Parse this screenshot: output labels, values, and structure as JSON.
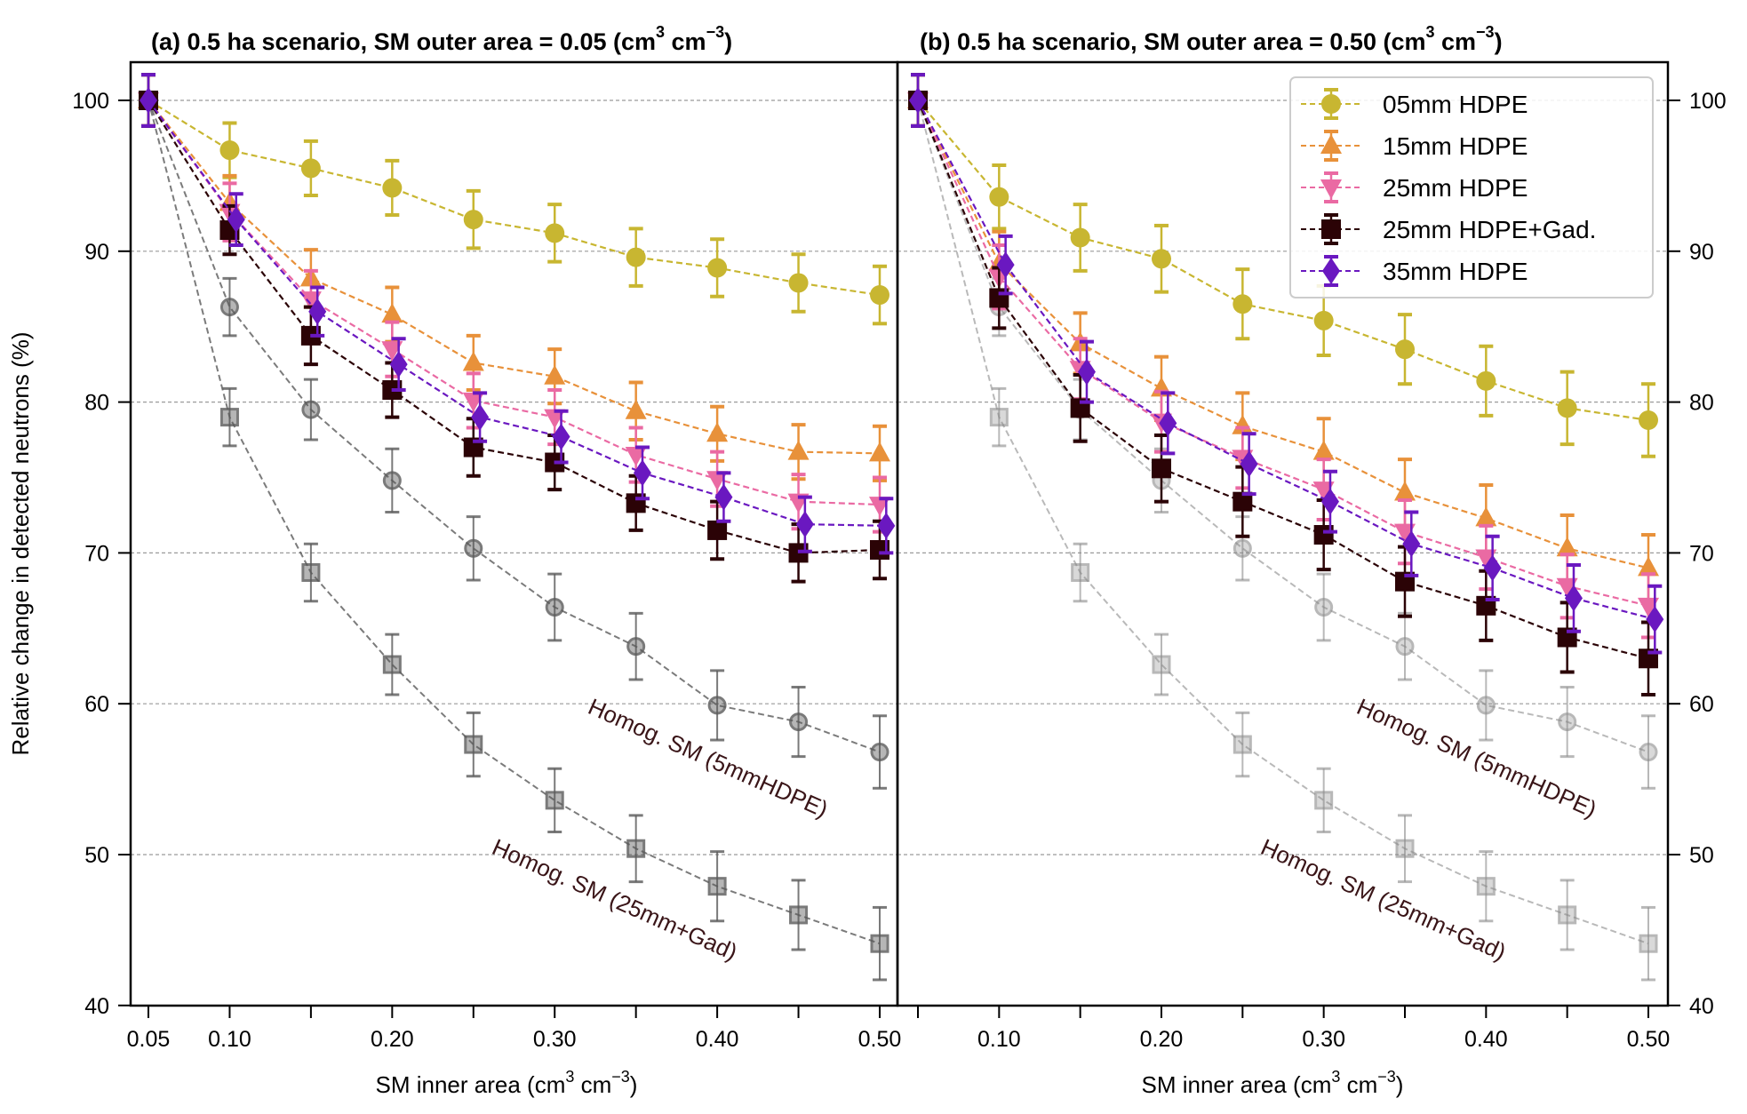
{
  "chart_data": [
    {
      "type": "line",
      "panel": "a",
      "title": "(a) 0.5 ha scenario, SM outer area = 0.05 (cm3 cm-3)",
      "title_main": "(a) 0.5 ha scenario, SM outer area = 0.05 (cm",
      "xlabel_main": "SM inner area (cm",
      "ylabel": "Relative change in detected neutrons (%)",
      "x": [
        0.05,
        0.1,
        0.15,
        0.2,
        0.25,
        0.3,
        0.35,
        0.4,
        0.45,
        0.5
      ],
      "xticks": [
        0.05,
        0.1,
        0.15,
        0.2,
        0.25,
        0.3,
        0.35,
        0.4,
        0.45,
        0.5
      ],
      "xtick_labels": [
        "0.05",
        "0.10",
        "",
        "0.20",
        "",
        "0.30",
        "",
        "0.40",
        "",
        "0.50"
      ],
      "xlim": [
        0.04,
        0.515
      ],
      "ylim": [
        40,
        102.5
      ],
      "yticks": [
        40,
        50,
        60,
        70,
        80,
        90,
        100
      ],
      "ytick_labels": [
        "40",
        "50",
        "60",
        "70",
        "80",
        "90",
        "100"
      ],
      "grid": "horizontal dashed",
      "series": [
        {
          "name": "05mm HDPE",
          "marker": "circle",
          "color": "#c8b631",
          "values": [
            100,
            96.7,
            95.5,
            94.2,
            92.1,
            91.2,
            89.6,
            88.9,
            87.9,
            87.1
          ],
          "err": [
            1.7,
            1.8,
            1.8,
            1.8,
            1.9,
            1.9,
            1.9,
            1.9,
            1.9,
            1.9
          ]
        },
        {
          "name": "15mm HDPE",
          "marker": "triangle-up",
          "color": "#e8913a",
          "values": [
            100,
            93.2,
            88.2,
            85.8,
            82.6,
            81.7,
            79.4,
            77.9,
            76.7,
            76.6
          ],
          "err": [
            1.7,
            1.8,
            1.9,
            1.8,
            1.8,
            1.8,
            1.9,
            1.8,
            1.8,
            1.8
          ]
        },
        {
          "name": "25mm HDPE",
          "marker": "triangle-down",
          "color": "#ea6aa3",
          "values": [
            100,
            92.6,
            86.8,
            83.5,
            80.1,
            79.0,
            76.5,
            74.9,
            73.4,
            73.2
          ],
          "err": [
            1.7,
            1.9,
            1.9,
            1.8,
            1.8,
            1.8,
            1.8,
            1.8,
            1.8,
            1.8
          ]
        },
        {
          "name": "25mm HDPE+Gad.",
          "marker": "square",
          "color": "#2b0306",
          "values": [
            100,
            91.4,
            84.4,
            80.8,
            77.0,
            76.0,
            73.3,
            71.5,
            70.0,
            70.2
          ],
          "err": [
            1.7,
            1.6,
            1.9,
            1.8,
            1.9,
            1.8,
            1.8,
            1.9,
            1.9,
            1.9
          ]
        },
        {
          "name": "35mm HDPE",
          "marker": "diamond",
          "color": "#6a18c0",
          "values": [
            100,
            92.1,
            86.0,
            82.5,
            79.0,
            77.7,
            75.3,
            73.7,
            71.9,
            71.8
          ],
          "err": [
            1.7,
            1.7,
            1.6,
            1.7,
            1.6,
            1.7,
            1.7,
            1.6,
            1.8,
            1.8
          ]
        },
        {
          "name": "Homog. SM (5mmHDPE)",
          "marker": "circle-open",
          "color": "#5a5a5a",
          "values": [
            100,
            86.3,
            79.5,
            74.8,
            70.3,
            66.4,
            63.8,
            59.9,
            58.8,
            56.8
          ],
          "err": [
            1.7,
            1.9,
            2.0,
            2.1,
            2.1,
            2.2,
            2.2,
            2.3,
            2.3,
            2.4
          ]
        },
        {
          "name": "Homog. SM (25mm+Gad)",
          "marker": "square-open",
          "color": "#5a5a5a",
          "values": [
            100,
            79.0,
            68.7,
            62.6,
            57.3,
            53.6,
            50.4,
            47.9,
            46.0,
            44.1
          ],
          "err": [
            1.7,
            1.9,
            1.9,
            2.0,
            2.1,
            2.1,
            2.2,
            2.3,
            2.3,
            2.4
          ]
        }
      ],
      "annotations": [
        "Homog. SM (5mmHDPE)",
        "Homog. SM (25mm+Gad)"
      ]
    },
    {
      "type": "line",
      "panel": "b",
      "title": "(b) 0.5 ha scenario, SM outer area = 0.50 (cm3 cm-3)",
      "title_main": "(b) 0.5 ha scenario, SM outer area = 0.50 (cm",
      "xlabel_main": "SM inner area (cm",
      "x": [
        0.05,
        0.1,
        0.15,
        0.2,
        0.25,
        0.3,
        0.35,
        0.4,
        0.45,
        0.5
      ],
      "xticks": [
        0.05,
        0.1,
        0.15,
        0.2,
        0.25,
        0.3,
        0.35,
        0.4,
        0.45,
        0.5
      ],
      "xtick_labels": [
        "",
        "0.10",
        "",
        "0.20",
        "",
        "0.30",
        "",
        "0.40",
        "",
        "0.50"
      ],
      "xlim": [
        0.04,
        0.515
      ],
      "ylim": [
        40,
        102.5
      ],
      "yticks": [
        40,
        50,
        60,
        70,
        80,
        90,
        100
      ],
      "ytick_labels": [
        "40",
        "50",
        "60",
        "70",
        "80",
        "90",
        "100"
      ],
      "yaxis_side": "right",
      "grid": "horizontal dashed",
      "legend": {
        "placement": "top-right",
        "entries": [
          "05mm HDPE",
          "15mm HDPE",
          "25mm HDPE",
          "25mm HDPE+Gad.",
          "35mm HDPE"
        ]
      },
      "series": [
        {
          "name": "05mm HDPE",
          "marker": "circle",
          "color": "#c8b631",
          "values": [
            100,
            93.6,
            90.9,
            89.5,
            86.5,
            85.4,
            83.5,
            81.4,
            79.6,
            78.8
          ],
          "err": [
            1.7,
            2.1,
            2.2,
            2.2,
            2.3,
            2.3,
            2.3,
            2.3,
            2.4,
            2.4
          ]
        },
        {
          "name": "15mm HDPE",
          "marker": "triangle-up",
          "color": "#e8913a",
          "values": [
            100,
            89.2,
            83.9,
            80.9,
            78.4,
            76.7,
            74.0,
            72.3,
            70.3,
            69.0
          ],
          "err": [
            1.7,
            2.1,
            2.0,
            2.1,
            2.2,
            2.2,
            2.2,
            2.2,
            2.2,
            2.2
          ]
        },
        {
          "name": "25mm HDPE",
          "marker": "triangle-down",
          "color": "#ea6aa3",
          "values": [
            100,
            88.3,
            82.2,
            78.7,
            76.3,
            74.2,
            71.4,
            69.7,
            67.8,
            66.5
          ],
          "err": [
            1.7,
            2.1,
            2.0,
            2.0,
            2.0,
            2.0,
            2.1,
            2.1,
            2.1,
            2.1
          ]
        },
        {
          "name": "25mm HDPE+Gad.",
          "marker": "square",
          "color": "#2b0306",
          "values": [
            100,
            86.9,
            79.6,
            75.6,
            73.4,
            71.2,
            68.1,
            66.5,
            64.4,
            63.0
          ],
          "err": [
            1.7,
            2.0,
            2.2,
            2.2,
            2.3,
            2.3,
            2.3,
            2.3,
            2.3,
            2.4
          ]
        },
        {
          "name": "35mm HDPE",
          "marker": "diamond",
          "color": "#6a18c0",
          "values": [
            100,
            89.1,
            82.0,
            78.6,
            75.9,
            73.4,
            70.6,
            69.0,
            67.0,
            65.6
          ],
          "err": [
            1.7,
            1.9,
            2.0,
            2.0,
            2.0,
            2.0,
            2.1,
            2.1,
            2.2,
            2.2
          ]
        },
        {
          "name": "Homog. SM (5mmHDPE)",
          "marker": "circle-open",
          "color": "#8a8a8a",
          "values": [
            100,
            86.3,
            79.5,
            74.8,
            70.3,
            66.4,
            63.8,
            59.9,
            58.8,
            56.8
          ],
          "err": [
            1.7,
            1.9,
            2.0,
            2.1,
            2.1,
            2.2,
            2.2,
            2.3,
            2.3,
            2.4
          ]
        },
        {
          "name": "Homog. SM (25mm+Gad)",
          "marker": "square-open",
          "color": "#8a8a8a",
          "values": [
            100,
            79.0,
            68.7,
            62.6,
            57.3,
            53.6,
            50.4,
            47.9,
            46.0,
            44.1
          ],
          "err": [
            1.7,
            1.9,
            1.9,
            2.0,
            2.1,
            2.1,
            2.2,
            2.3,
            2.3,
            2.4
          ]
        }
      ],
      "annotations": [
        "Homog. SM (5mmHDPE)",
        "Homog. SM (25mm+Gad)"
      ]
    }
  ],
  "units": {
    "sup3": "3",
    "supm3": "−3",
    "close_paren": ")",
    "space_cm": " cm"
  }
}
